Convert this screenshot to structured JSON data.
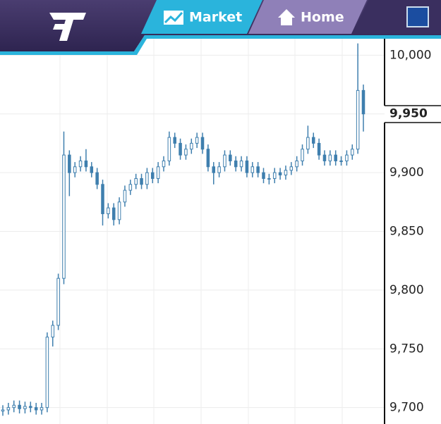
{
  "header": {
    "tabs": [
      "Market",
      "Home"
    ]
  },
  "chart_data": {
    "type": "candlestick",
    "color": "#3f7fae",
    "grid": true,
    "open": [
      9697,
      9698,
      9700,
      9702,
      9699,
      9701,
      9700,
      9698,
      9700,
      9760,
      9770,
      9810,
      9915,
      9900,
      9905,
      9910,
      9905,
      9900,
      9890,
      9865,
      9870,
      9860,
      9875,
      9885,
      9890,
      9895,
      9890,
      9900,
      9895,
      9905,
      9910,
      9930,
      9925,
      9915,
      9920,
      9925,
      9930,
      9920,
      9905,
      9900,
      9905,
      9915,
      9910,
      9905,
      9910,
      9900,
      9905,
      9900,
      9895,
      9895,
      9900,
      9898,
      9902,
      9905,
      9910,
      9920,
      9930,
      9925,
      9915,
      9910,
      9915,
      9910,
      9910,
      9915,
      9920,
      9970
    ],
    "high": [
      9702,
      9704,
      9706,
      9706,
      9705,
      9705,
      9704,
      9704,
      9764,
      9774,
      9814,
      9935,
      9919,
      9909,
      9914,
      9920,
      9909,
      9904,
      9894,
      9874,
      9874,
      9879,
      9889,
      9894,
      9899,
      9899,
      9904,
      9904,
      9909,
      9914,
      9935,
      9934,
      9929,
      9924,
      9929,
      9934,
      9934,
      9924,
      9909,
      9909,
      9919,
      9919,
      9914,
      9914,
      9914,
      9909,
      9909,
      9904,
      9899,
      9904,
      9904,
      9906,
      9909,
      9914,
      9924,
      9940,
      9934,
      9929,
      9919,
      9919,
      9919,
      9914,
      9919,
      9924,
      10010,
      9975
    ],
    "low": [
      9693,
      9694,
      9696,
      9695,
      9695,
      9696,
      9694,
      9694,
      9696,
      9752,
      9766,
      9805,
      9880,
      9896,
      9901,
      9901,
      9896,
      9886,
      9855,
      9861,
      9855,
      9856,
      9871,
      9881,
      9886,
      9886,
      9886,
      9891,
      9891,
      9901,
      9906,
      9921,
      9911,
      9911,
      9916,
      9921,
      9916,
      9901,
      9890,
      9896,
      9901,
      9906,
      9901,
      9901,
      9896,
      9896,
      9896,
      9891,
      9890,
      9891,
      9894,
      9894,
      9898,
      9901,
      9906,
      9916,
      9921,
      9911,
      9906,
      9906,
      9906,
      9906,
      9906,
      9911,
      9916,
      9935
    ],
    "close": [
      9698,
      9700,
      9702,
      9699,
      9701,
      9700,
      9698,
      9700,
      9760,
      9770,
      9810,
      9915,
      9900,
      9905,
      9910,
      9905,
      9900,
      9890,
      9865,
      9870,
      9860,
      9875,
      9885,
      9890,
      9895,
      9890,
      9900,
      9895,
      9905,
      9910,
      9930,
      9925,
      9915,
      9920,
      9925,
      9930,
      9920,
      9905,
      9900,
      9905,
      9915,
      9910,
      9905,
      9910,
      9900,
      9905,
      9900,
      9895,
      9895,
      9900,
      9898,
      9902,
      9905,
      9910,
      9920,
      9930,
      9925,
      9915,
      9910,
      9915,
      9910,
      9910,
      9915,
      9920,
      9970,
      9950
    ],
    "ylim": [
      9686,
      10014
    ],
    "yticks": [
      {
        "value": 9700,
        "label": "9,700"
      },
      {
        "value": 9750,
        "label": "9,750"
      },
      {
        "value": 9800,
        "label": "9,800"
      },
      {
        "value": 9850,
        "label": "9,850"
      },
      {
        "value": 9900,
        "label": "9,900"
      },
      {
        "value": 9950,
        "label": "9,950"
      },
      {
        "value": 10000,
        "label": "10,000"
      }
    ],
    "last_price": {
      "value": 9950,
      "label": "9,950"
    }
  }
}
